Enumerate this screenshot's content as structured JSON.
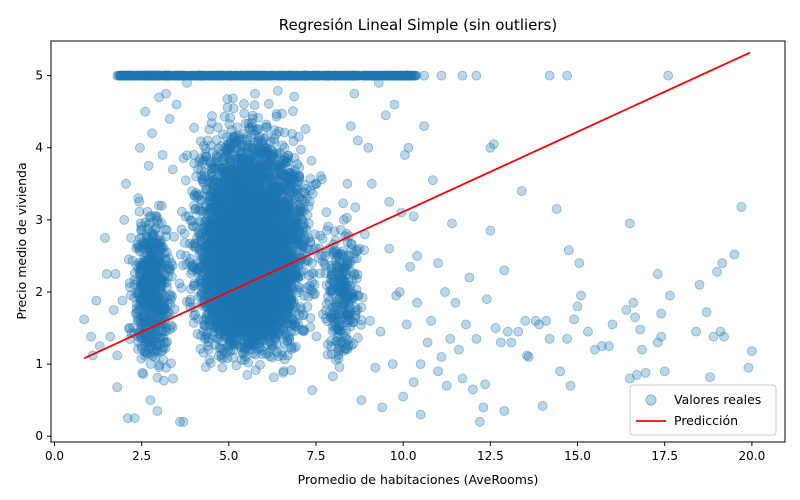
{
  "chart_data": {
    "type": "scatter",
    "title": "Regresión Lineal Simple (sin outliers)",
    "xlabel": "Promedio de habitaciones (AveRooms)",
    "ylabel": "Precio medio de vivienda",
    "xlim": [
      -0.1,
      20.95
    ],
    "ylim": [
      -0.08,
      5.48
    ],
    "xticks": [
      0.0,
      2.5,
      5.0,
      7.5,
      10.0,
      12.5,
      15.0,
      17.5,
      20.0
    ],
    "xtick_labels": [
      "0.0",
      "2.5",
      "5.0",
      "7.5",
      "10.0",
      "12.5",
      "15.0",
      "17.5",
      "20.0"
    ],
    "yticks": [
      0,
      1,
      2,
      3,
      4,
      5
    ],
    "ytick_labels": [
      "0",
      "1",
      "2",
      "3",
      "4",
      "5"
    ],
    "grid": false,
    "legend_position": "lower-right",
    "series": [
      {
        "name": "Valores reales",
        "kind": "scatter",
        "color": "#1f77b4",
        "points": [
          [
            0.85,
            1.62
          ],
          [
            1.05,
            1.38
          ],
          [
            1.1,
            1.12
          ],
          [
            1.2,
            1.88
          ],
          [
            1.3,
            1.25
          ],
          [
            1.5,
            2.25
          ],
          [
            1.45,
            2.75
          ],
          [
            1.6,
            1.38
          ],
          [
            1.7,
            1.75
          ],
          [
            1.75,
            2.25
          ],
          [
            1.8,
            1.12
          ],
          [
            1.8,
            0.68
          ],
          [
            1.9,
            5.0
          ],
          [
            1.95,
            1.88
          ],
          [
            2.0,
            3.0
          ],
          [
            2.05,
            3.5
          ],
          [
            2.1,
            0.25
          ],
          [
            2.15,
            1.5
          ],
          [
            2.2,
            2.75
          ],
          [
            2.3,
            0.25
          ],
          [
            2.35,
            5.0
          ],
          [
            2.4,
            3.3
          ],
          [
            2.45,
            4.0
          ],
          [
            2.5,
            1.25
          ],
          [
            2.6,
            2.0
          ],
          [
            2.6,
            4.5
          ],
          [
            2.7,
            3.75
          ],
          [
            2.75,
            0.5
          ],
          [
            2.8,
            4.2
          ],
          [
            2.9,
            5.0
          ],
          [
            2.95,
            0.35
          ],
          [
            3.0,
            4.7
          ],
          [
            3.1,
            3.9
          ],
          [
            3.2,
            4.75
          ],
          [
            3.3,
            4.4
          ],
          [
            3.4,
            0.8
          ],
          [
            3.5,
            4.6
          ],
          [
            3.6,
            0.2
          ],
          [
            3.7,
            0.2
          ],
          [
            3.8,
            4.9
          ],
          [
            8.3,
            3.0
          ],
          [
            8.4,
            3.5
          ],
          [
            8.5,
            4.3
          ],
          [
            8.6,
            4.75
          ],
          [
            8.7,
            4.1
          ],
          [
            8.75,
            2.6
          ],
          [
            8.8,
            0.5
          ],
          [
            8.9,
            2.8
          ],
          [
            9.0,
            4.0
          ],
          [
            9.05,
            1.6
          ],
          [
            9.1,
            3.5
          ],
          [
            9.2,
            0.95
          ],
          [
            9.3,
            4.9
          ],
          [
            9.35,
            1.45
          ],
          [
            9.4,
            0.4
          ],
          [
            9.5,
            4.45
          ],
          [
            9.6,
            2.6
          ],
          [
            9.6,
            3.25
          ],
          [
            9.7,
            1.0
          ],
          [
            9.75,
            4.6
          ],
          [
            9.8,
            1.95
          ],
          [
            9.9,
            2.0
          ],
          [
            9.95,
            3.1
          ],
          [
            10.0,
            0.55
          ],
          [
            10.05,
            3.9
          ],
          [
            10.1,
            1.55
          ],
          [
            10.15,
            4.0
          ],
          [
            10.2,
            2.35
          ],
          [
            10.3,
            0.75
          ],
          [
            10.3,
            3.05
          ],
          [
            10.4,
            1.85
          ],
          [
            10.4,
            2.5
          ],
          [
            10.5,
            1.0
          ],
          [
            10.5,
            0.3
          ],
          [
            10.6,
            4.3
          ],
          [
            10.7,
            1.3
          ],
          [
            10.8,
            1.6
          ],
          [
            10.85,
            3.55
          ],
          [
            11.0,
            2.4
          ],
          [
            11.0,
            0.9
          ],
          [
            11.1,
            1.1
          ],
          [
            11.2,
            2.0
          ],
          [
            11.25,
            0.7
          ],
          [
            11.35,
            1.35
          ],
          [
            11.4,
            2.95
          ],
          [
            11.5,
            1.85
          ],
          [
            11.6,
            1.2
          ],
          [
            11.7,
            0.8
          ],
          [
            11.8,
            1.55
          ],
          [
            11.9,
            2.2
          ],
          [
            12.0,
            0.65
          ],
          [
            12.1,
            1.35
          ],
          [
            12.2,
            0.2
          ],
          [
            12.3,
            0.4
          ],
          [
            12.35,
            0.72
          ],
          [
            12.4,
            1.9
          ],
          [
            12.5,
            2.85
          ],
          [
            12.5,
            4.0
          ],
          [
            12.6,
            4.05
          ],
          [
            12.65,
            1.5
          ],
          [
            12.8,
            1.3
          ],
          [
            12.9,
            2.3
          ],
          [
            12.9,
            0.35
          ],
          [
            13.0,
            1.45
          ],
          [
            13.1,
            1.3
          ],
          [
            13.3,
            1.45
          ],
          [
            13.4,
            3.4
          ],
          [
            13.5,
            1.6
          ],
          [
            13.55,
            1.12
          ],
          [
            13.6,
            1.1
          ],
          [
            13.8,
            1.6
          ],
          [
            13.9,
            1.55
          ],
          [
            14.0,
            0.42
          ],
          [
            14.1,
            1.6
          ],
          [
            14.2,
            1.35
          ],
          [
            14.4,
            3.15
          ],
          [
            14.5,
            0.9
          ],
          [
            14.7,
            1.35
          ],
          [
            14.75,
            2.58
          ],
          [
            14.8,
            0.7
          ],
          [
            14.9,
            1.62
          ],
          [
            15.0,
            1.8
          ],
          [
            15.05,
            2.4
          ],
          [
            15.1,
            1.95
          ],
          [
            15.3,
            1.45
          ],
          [
            15.5,
            1.2
          ],
          [
            15.7,
            1.25
          ],
          [
            15.9,
            1.25
          ],
          [
            16.0,
            1.55
          ],
          [
            16.4,
            1.75
          ],
          [
            16.5,
            2.95
          ],
          [
            16.5,
            0.8
          ],
          [
            16.6,
            1.85
          ],
          [
            16.65,
            1.65
          ],
          [
            16.7,
            0.85
          ],
          [
            16.8,
            1.48
          ],
          [
            16.85,
            1.2
          ],
          [
            16.95,
            0.88
          ],
          [
            17.3,
            2.25
          ],
          [
            17.3,
            1.3
          ],
          [
            17.4,
            1.7
          ],
          [
            17.4,
            1.38
          ],
          [
            17.5,
            0.9
          ],
          [
            17.65,
            1.95
          ],
          [
            18.4,
            1.45
          ],
          [
            18.5,
            2.1
          ],
          [
            18.7,
            1.72
          ],
          [
            18.8,
            0.82
          ],
          [
            18.9,
            1.38
          ],
          [
            19.0,
            2.28
          ],
          [
            19.1,
            1.45
          ],
          [
            19.15,
            2.4
          ],
          [
            19.2,
            1.38
          ],
          [
            19.5,
            2.52
          ],
          [
            19.7,
            3.18
          ],
          [
            19.9,
            0.95
          ],
          [
            20.0,
            1.18
          ],
          [
            14.2,
            5.0
          ],
          [
            14.7,
            5.0
          ],
          [
            17.6,
            5.0
          ],
          [
            11.7,
            5.0
          ],
          [
            12.1,
            5.0
          ],
          [
            11.1,
            5.0
          ],
          [
            10.6,
            5.0
          ],
          [
            10.2,
            5.0
          ],
          [
            9.9,
            5.0
          ]
        ]
      },
      {
        "name": "Predicción",
        "kind": "line",
        "color": "#ff0000",
        "x": [
          0.85,
          19.95
        ],
        "y": [
          1.08,
          5.32
        ]
      }
    ],
    "dense_cloud": [
      {
        "x_range": [
          2.0,
          3.6
        ],
        "y_range": [
          0.4,
          3.6
        ],
        "count": 550
      },
      {
        "x_range": [
          3.3,
          8.0
        ],
        "y_range": [
          0.45,
          5.0
        ],
        "count": 4200
      },
      {
        "x_range": [
          4.0,
          7.2
        ],
        "y_range": [
          0.8,
          3.6
        ],
        "count": 2200
      },
      {
        "x_range": [
          7.5,
          9.0
        ],
        "y_range": [
          0.5,
          3.5
        ],
        "count": 260
      }
    ]
  }
}
